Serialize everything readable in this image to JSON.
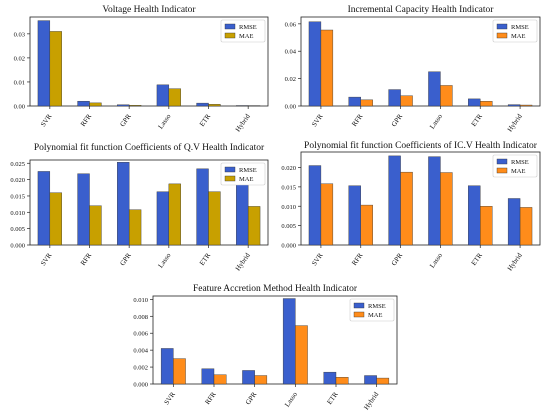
{
  "figure": {
    "series_colors": {
      "RMSE": "#3a5fcd",
      "MAE": "#c8a000",
      "MAE_alt": "#ff8c1a",
      "RMSE_alt": "#5a4fcf",
      "MAE_olive": "#a9a11a"
    }
  },
  "chart_data": [
    {
      "type": "bar",
      "title": "Voltage Health Indicator",
      "categories": [
        "SVR",
        "RFR",
        "GPR",
        "Lasso",
        "ETR",
        "Hybrid"
      ],
      "series": [
        {
          "name": "RMSE",
          "values": [
            0.0355,
            0.002,
            0.0005,
            0.0088,
            0.0012,
            0.0002
          ]
        },
        {
          "name": "MAE",
          "values": [
            0.031,
            0.0013,
            0.0003,
            0.0072,
            0.0007,
            0.0001
          ]
        }
      ],
      "ylim": [
        0,
        0.037
      ],
      "yticks": [
        "0.00",
        "0.01",
        "0.02",
        "0.03"
      ],
      "ytick_values": [
        0,
        0.01,
        0.02,
        0.03
      ],
      "legend": "top-right",
      "grid": false,
      "colors": [
        "#3a5fcd",
        "#c8a000"
      ]
    },
    {
      "type": "bar",
      "title": "Incremental Capacity Health Indicator",
      "categories": [
        "SVR",
        "RFR",
        "GPR",
        "Lasso",
        "ETR",
        "Hybrid"
      ],
      "series": [
        {
          "name": "RMSE",
          "values": [
            0.0615,
            0.0065,
            0.012,
            0.025,
            0.0052,
            0.001
          ]
        },
        {
          "name": "MAE",
          "values": [
            0.0555,
            0.0045,
            0.0075,
            0.015,
            0.0035,
            0.0007
          ]
        }
      ],
      "ylim": [
        0,
        0.065
      ],
      "yticks": [
        "0.00",
        "0.02",
        "0.04",
        "0.06"
      ],
      "ytick_values": [
        0,
        0.02,
        0.04,
        0.06
      ],
      "legend": "top-right",
      "grid": false,
      "colors": [
        "#3a5fcd",
        "#ff8c1a"
      ]
    },
    {
      "type": "bar",
      "title": "Polynomial fit function Coefficients of Q.V Health Indicator",
      "categories": [
        "SVR",
        "RFR",
        "GPR",
        "Lasso",
        "ETR",
        "Hybrid"
      ],
      "series": [
        {
          "name": "RMSE",
          "values": [
            0.0225,
            0.0218,
            0.0253,
            0.0163,
            0.0233,
            0.0185
          ]
        },
        {
          "name": "MAE",
          "values": [
            0.016,
            0.012,
            0.0108,
            0.0187,
            0.0163,
            0.0118
          ]
        }
      ],
      "ylim": [
        0,
        0.026
      ],
      "yticks": [
        "0.000",
        "0.005",
        "0.010",
        "0.015",
        "0.020",
        "0.025"
      ],
      "ytick_values": [
        0,
        0.005,
        0.01,
        0.015,
        0.02,
        0.025
      ],
      "legend": "top-right",
      "grid": false,
      "colors": [
        "#3a5fcd",
        "#c8a000"
      ]
    },
    {
      "type": "bar",
      "title": "Polynomial fit function Coefficients of IC.V Health Indicator",
      "categories": [
        "SVR",
        "RFR",
        "GPR",
        "Lasso",
        "ETR",
        "Hybrid"
      ],
      "series": [
        {
          "name": "RMSE",
          "values": [
            0.0205,
            0.0153,
            0.023,
            0.0228,
            0.0153,
            0.012
          ]
        },
        {
          "name": "MAE",
          "values": [
            0.0158,
            0.0103,
            0.0188,
            0.0187,
            0.01,
            0.0097
          ]
        }
      ],
      "ylim": [
        0,
        0.024
      ],
      "yticks": [
        "0.000",
        "0.005",
        "0.010",
        "0.015",
        "0.020"
      ],
      "ytick_values": [
        0,
        0.005,
        0.01,
        0.015,
        0.02
      ],
      "legend": "top-right",
      "grid": false,
      "colors": [
        "#3a5fcd",
        "#ff8c1a"
      ]
    },
    {
      "type": "bar",
      "title": "Feature Accretion Method Health Indicator",
      "categories": [
        "SVR",
        "RFR",
        "GPR",
        "Lasso",
        "ETR",
        "Hybrid"
      ],
      "series": [
        {
          "name": "RMSE",
          "values": [
            0.0042,
            0.0018,
            0.0016,
            0.0101,
            0.0014,
            0.001
          ]
        },
        {
          "name": "MAE",
          "values": [
            0.003,
            0.0011,
            0.001,
            0.0069,
            0.0008,
            0.0007
          ]
        }
      ],
      "ylim": [
        0,
        0.0104
      ],
      "yticks": [
        "0.000",
        "0.002",
        "0.004",
        "0.006",
        "0.008",
        "0.010"
      ],
      "ytick_values": [
        0,
        0.002,
        0.004,
        0.006,
        0.008,
        0.01
      ],
      "legend": "top-right",
      "grid": false,
      "colors": [
        "#3a5fcd",
        "#ff8c1a"
      ]
    }
  ]
}
